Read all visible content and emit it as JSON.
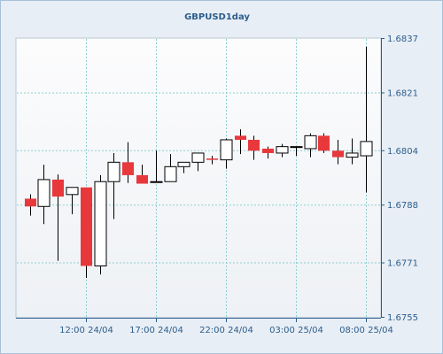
{
  "chart_data": {
    "type": "candlestick",
    "title": "GBPUSD1day",
    "y_ticks": [
      "1.6837",
      "1.6821",
      "1.6804",
      "1.6788",
      "1.6771",
      "1.6755"
    ],
    "ylim": [
      1.6755,
      1.6837
    ],
    "x_ticks": [
      {
        "label": "12:00 24/04",
        "index": 4
      },
      {
        "label": "17:00 24/04",
        "index": 9
      },
      {
        "label": "22:00 24/04",
        "index": 14
      },
      {
        "label": "03:00 25/04",
        "index": 19
      },
      {
        "label": "08:00 25/04",
        "index": 24
      }
    ],
    "grid": true,
    "colors": {
      "bull_body": "#ffffff",
      "bear_body": "#e8383c",
      "candle_outline": "#000000",
      "wick": "#000000",
      "grid": "#8ccfcf",
      "axis": "#2b5d8c",
      "tick_text": "#2b5d8c",
      "frame_outer": "#a8c0d8",
      "frame_bg": "#e8eef5",
      "plot_bg_top": "#fcfcfd",
      "plot_bg_bottom": "#eef1f5"
    },
    "candles": [
      {
        "open": 1.67899,
        "high": 1.67912,
        "low": 1.67849,
        "close": 1.67876
      },
      {
        "open": 1.67876,
        "high": 1.67999,
        "low": 1.67824,
        "close": 1.67955
      },
      {
        "open": 1.67955,
        "high": 1.6797,
        "low": 1.67716,
        "close": 1.67905
      },
      {
        "open": 1.67911,
        "high": 1.67932,
        "low": 1.67853,
        "close": 1.67932
      },
      {
        "open": 1.67932,
        "high": 1.67932,
        "low": 1.67666,
        "close": 1.67701
      },
      {
        "open": 1.67701,
        "high": 1.67968,
        "low": 1.67676,
        "close": 1.67949
      },
      {
        "open": 1.67949,
        "high": 1.68033,
        "low": 1.67839,
        "close": 1.68006
      },
      {
        "open": 1.68006,
        "high": 1.68065,
        "low": 1.67945,
        "close": 1.67968
      },
      {
        "open": 1.67968,
        "high": 1.67999,
        "low": 1.67943,
        "close": 1.67943
      },
      {
        "open": 1.67949,
        "high": 1.6804,
        "low": 1.67949,
        "close": 1.67949
      },
      {
        "open": 1.67949,
        "high": 1.6803,
        "low": 1.67949,
        "close": 1.67993
      },
      {
        "open": 1.67993,
        "high": 1.68006,
        "low": 1.67974,
        "close": 1.68006
      },
      {
        "open": 1.68006,
        "high": 1.68033,
        "low": 1.6798,
        "close": 1.68033
      },
      {
        "open": 1.68017,
        "high": 1.68025,
        "low": 1.68,
        "close": 1.68013
      },
      {
        "open": 1.68013,
        "high": 1.68076,
        "low": 1.67987,
        "close": 1.68072
      },
      {
        "open": 1.68084,
        "high": 1.68103,
        "low": 1.6803,
        "close": 1.68072
      },
      {
        "open": 1.68072,
        "high": 1.68084,
        "low": 1.68013,
        "close": 1.6804
      },
      {
        "open": 1.68046,
        "high": 1.68052,
        "low": 1.68017,
        "close": 1.68033
      },
      {
        "open": 1.68033,
        "high": 1.6806,
        "low": 1.68021,
        "close": 1.68052
      },
      {
        "open": 1.68052,
        "high": 1.68052,
        "low": 1.68025,
        "close": 1.68052
      },
      {
        "open": 1.68046,
        "high": 1.68091,
        "low": 1.68021,
        "close": 1.68084
      },
      {
        "open": 1.68084,
        "high": 1.68091,
        "low": 1.68033,
        "close": 1.6804
      },
      {
        "open": 1.6804,
        "high": 1.68072,
        "low": 1.68,
        "close": 1.68021
      },
      {
        "open": 1.68021,
        "high": 1.68076,
        "low": 1.68,
        "close": 1.68033
      },
      {
        "open": 1.68025,
        "high": 1.68346,
        "low": 1.67917,
        "close": 1.68067
      }
    ]
  }
}
